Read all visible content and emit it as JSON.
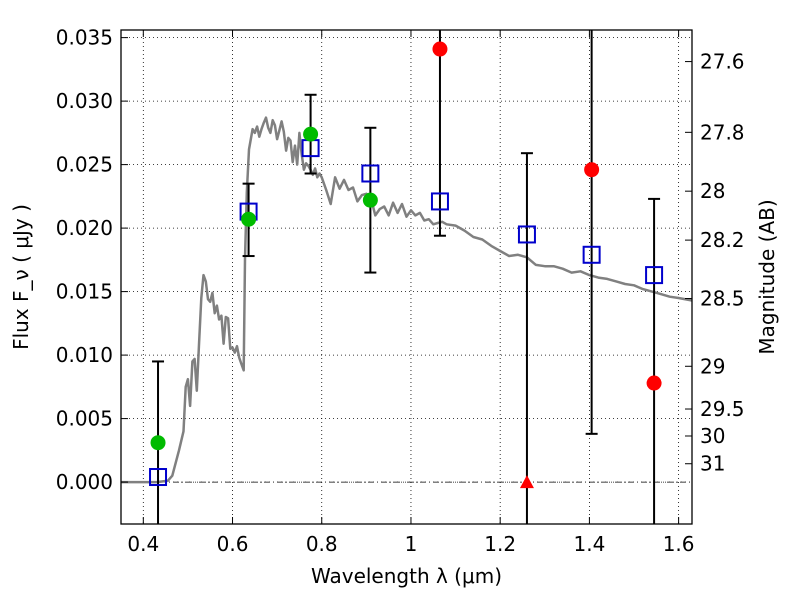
{
  "chart_data": {
    "type": "scatter",
    "title": "",
    "xlabel": "Wavelength  λ (μm)",
    "ylabel": "Flux  F_ν  ( μJy )",
    "ylabel_right": "Magnitude (AB)",
    "xlim": [
      0.35,
      1.63
    ],
    "ylim": [
      -0.0033,
      0.0356
    ],
    "x_ticks": [
      {
        "value": 0.4,
        "label": "0.4"
      },
      {
        "value": 0.6,
        "label": "0.6"
      },
      {
        "value": 0.8,
        "label": "0.8"
      },
      {
        "value": 1.0,
        "label": "1"
      },
      {
        "value": 1.2,
        "label": "1.2"
      },
      {
        "value": 1.4,
        "label": "1.4"
      },
      {
        "value": 1.6,
        "label": "1.6"
      }
    ],
    "y_ticks": [
      {
        "value": 0.0,
        "label": "0.000"
      },
      {
        "value": 0.005,
        "label": "0.005"
      },
      {
        "value": 0.01,
        "label": "0.010"
      },
      {
        "value": 0.015,
        "label": "0.015"
      },
      {
        "value": 0.02,
        "label": "0.020"
      },
      {
        "value": 0.025,
        "label": "0.025"
      },
      {
        "value": 0.03,
        "label": "0.030"
      },
      {
        "value": 0.035,
        "label": "0.035"
      }
    ],
    "mag_ticks": [
      {
        "mag": 27.6,
        "label": "27.6"
      },
      {
        "mag": 27.8,
        "label": "27.8"
      },
      {
        "mag": 28.0,
        "label": "28"
      },
      {
        "mag": 28.2,
        "label": "28.2"
      },
      {
        "mag": 28.5,
        "label": "28.5"
      },
      {
        "mag": 29.0,
        "label": "29"
      },
      {
        "mag": 29.5,
        "label": "29.5"
      },
      {
        "mag": 30.0,
        "label": "30"
      },
      {
        "mag": 31.0,
        "label": "31"
      }
    ],
    "grid": true,
    "colors": {
      "model": "#808080",
      "model_points": "#0000cc",
      "measured_green": "#00bb00",
      "measured_red": "#ff0000",
      "error_bars": "#000000"
    },
    "series": [
      {
        "kind": "model_sed",
        "x": [
          0.35,
          0.43,
          0.455,
          0.465,
          0.48,
          0.49,
          0.495,
          0.5,
          0.505,
          0.51,
          0.515,
          0.52,
          0.525,
          0.53,
          0.535,
          0.54,
          0.545,
          0.55,
          0.555,
          0.56,
          0.565,
          0.57,
          0.575,
          0.58,
          0.585,
          0.59,
          0.595,
          0.6,
          0.605,
          0.61,
          0.615,
          0.62,
          0.625,
          0.628,
          0.632,
          0.637,
          0.645,
          0.65,
          0.655,
          0.66,
          0.665,
          0.67,
          0.675,
          0.68,
          0.685,
          0.69,
          0.695,
          0.7,
          0.705,
          0.71,
          0.715,
          0.72,
          0.725,
          0.73,
          0.735,
          0.74,
          0.745,
          0.75,
          0.755,
          0.76,
          0.765,
          0.77,
          0.775,
          0.78,
          0.785,
          0.79,
          0.795,
          0.8,
          0.81,
          0.82,
          0.83,
          0.84,
          0.85,
          0.86,
          0.87,
          0.88,
          0.89,
          0.9,
          0.91,
          0.92,
          0.93,
          0.94,
          0.95,
          0.96,
          0.97,
          0.98,
          0.99,
          1.0,
          1.01,
          1.02,
          1.03,
          1.04,
          1.05,
          1.06,
          1.07,
          1.08,
          1.1,
          1.12,
          1.14,
          1.16,
          1.18,
          1.2,
          1.22,
          1.24,
          1.26,
          1.28,
          1.3,
          1.32,
          1.34,
          1.36,
          1.38,
          1.4,
          1.42,
          1.44,
          1.46,
          1.48,
          1.5,
          1.52,
          1.54,
          1.56,
          1.58,
          1.6,
          1.63
        ],
        "y": [
          0.0,
          0.0,
          0.0001,
          0.0005,
          0.0025,
          0.004,
          0.0075,
          0.0081,
          0.006,
          0.0095,
          0.0097,
          0.0072,
          0.011,
          0.0145,
          0.0163,
          0.0158,
          0.0144,
          0.0142,
          0.0149,
          0.0133,
          0.0139,
          0.0128,
          0.0131,
          0.0109,
          0.013,
          0.0129,
          0.0105,
          0.0106,
          0.0102,
          0.0107,
          0.0098,
          0.0093,
          0.0088,
          0.0176,
          0.0228,
          0.0262,
          0.0278,
          0.0275,
          0.028,
          0.0272,
          0.0278,
          0.0283,
          0.0287,
          0.0279,
          0.0275,
          0.0285,
          0.0281,
          0.027,
          0.0277,
          0.0284,
          0.0276,
          0.0261,
          0.0271,
          0.0269,
          0.0252,
          0.0265,
          0.025,
          0.0275,
          0.0258,
          0.0246,
          0.0251,
          0.0249,
          0.0246,
          0.0242,
          0.0247,
          0.024,
          0.0243,
          0.024,
          0.023,
          0.0219,
          0.024,
          0.0231,
          0.0238,
          0.023,
          0.0232,
          0.0221,
          0.0226,
          0.0227,
          0.0224,
          0.021,
          0.0215,
          0.0217,
          0.021,
          0.022,
          0.0212,
          0.0219,
          0.0209,
          0.0214,
          0.021,
          0.0212,
          0.0206,
          0.0207,
          0.0203,
          0.0204,
          0.0205,
          0.0203,
          0.0202,
          0.0198,
          0.0193,
          0.0191,
          0.0186,
          0.0182,
          0.0178,
          0.0179,
          0.0177,
          0.0171,
          0.017,
          0.017,
          0.0168,
          0.0165,
          0.0166,
          0.0163,
          0.0161,
          0.016,
          0.0158,
          0.0156,
          0.0155,
          0.0152,
          0.015,
          0.0148,
          0.0146,
          0.0145,
          0.0143
        ]
      },
      {
        "kind": "model_photometry",
        "x": [
          0.433,
          0.636,
          0.775,
          0.909,
          1.065,
          1.26,
          1.405,
          1.545
        ],
        "y": [
          0.0004,
          0.0213,
          0.0263,
          0.0243,
          0.0221,
          0.0195,
          0.0179,
          0.0163
        ]
      },
      {
        "kind": "measured",
        "x": [
          0.433,
          0.636,
          0.775,
          0.909,
          1.065,
          1.26,
          1.405,
          1.545
        ],
        "y": [
          0.0031,
          0.0207,
          0.0274,
          0.0222,
          0.0341,
          0.0,
          0.0246,
          0.0078
        ],
        "err_low": [
          -0.0033,
          0.0178,
          0.0243,
          0.0165,
          0.0194,
          -0.0033,
          0.0038,
          -0.0033
        ],
        "err_high": [
          0.0095,
          0.0235,
          0.0305,
          0.0279,
          0.0356,
          0.0259,
          0.0356,
          0.0223
        ],
        "marker": [
          "circle",
          "circle",
          "circle",
          "circle",
          "circle",
          "triangle",
          "circle",
          "circle"
        ],
        "color": [
          "green",
          "green",
          "green",
          "green",
          "red",
          "red",
          "red",
          "red"
        ]
      }
    ]
  }
}
